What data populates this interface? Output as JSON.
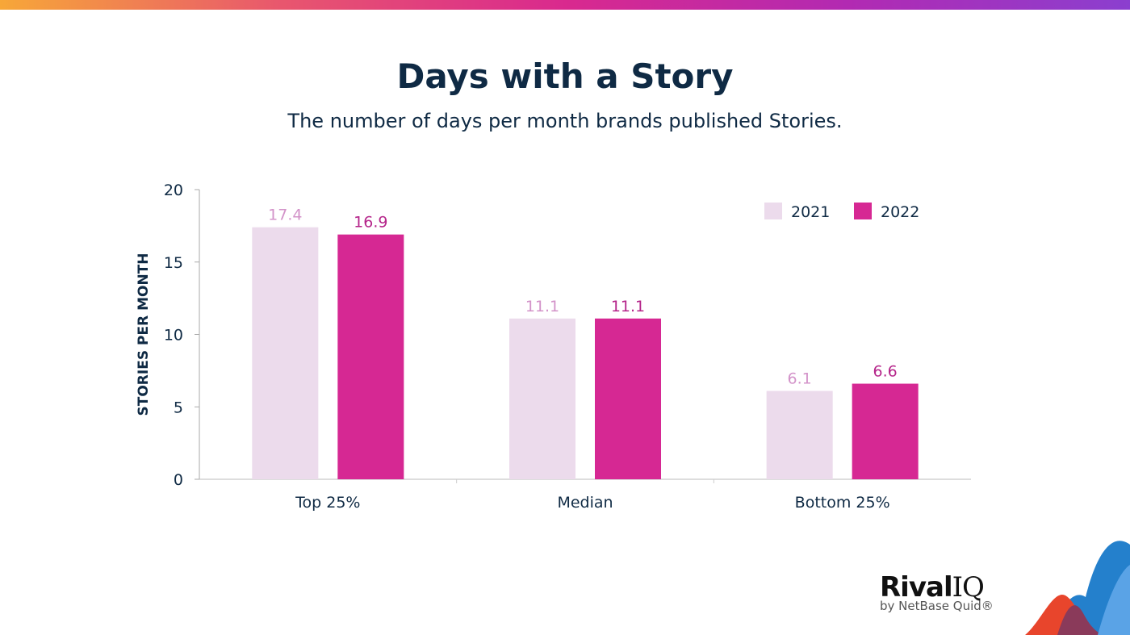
{
  "title": "Days with a Story",
  "subtitle": "The number of days per month brands published Stories.",
  "logo": {
    "name": "Rival IQ",
    "main": "Rival",
    "iq": "IQ",
    "tagline": "by NetBase Quid®"
  },
  "chart_data": {
    "type": "bar",
    "categories": [
      "Top 25%",
      "Median",
      "Bottom 25%"
    ],
    "series": [
      {
        "name": "2021",
        "values": [
          17.4,
          11.1,
          6.1
        ],
        "color": "#ecdbec",
        "label_color": "#d393c9"
      },
      {
        "name": "2022",
        "values": [
          16.9,
          11.1,
          6.6
        ],
        "color": "#d62893",
        "label_color": "#b5258a"
      }
    ],
    "xlabel": "",
    "ylabel": "STORIES PER MONTH",
    "ylim": [
      0,
      20
    ],
    "yticks": [
      0,
      5,
      10,
      15,
      20
    ],
    "grid": false,
    "legend": "top-right"
  }
}
